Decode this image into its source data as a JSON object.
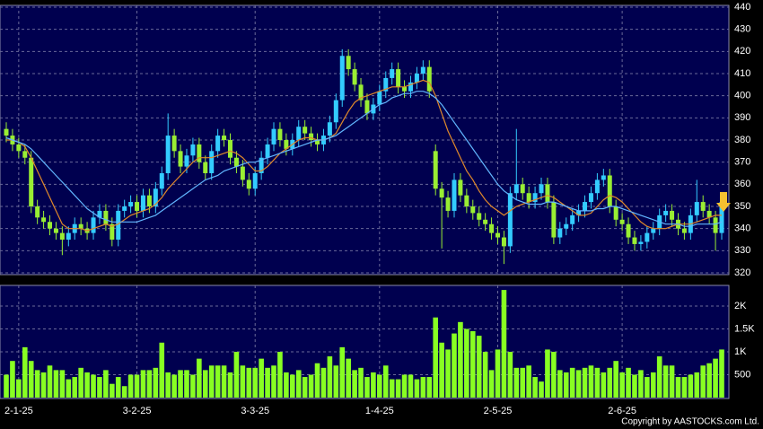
{
  "chart_data": {
    "type": "candlestick",
    "up_color": "#33ccff",
    "down_color": "#99ee33",
    "ylim": [
      320,
      440
    ],
    "yticks": [
      320,
      330,
      340,
      350,
      360,
      370,
      380,
      390,
      400,
      410,
      420,
      430,
      440
    ],
    "grid": true,
    "categories": [
      null,
      null,
      "2-1-25",
      null,
      null,
      null,
      null,
      null,
      null,
      null,
      null,
      null,
      null,
      null,
      null,
      null,
      null,
      null,
      null,
      null,
      null,
      "3-2-25",
      null,
      null,
      null,
      null,
      null,
      null,
      null,
      null,
      null,
      null,
      null,
      null,
      null,
      null,
      null,
      null,
      null,
      null,
      "3-3-25",
      null,
      null,
      null,
      null,
      null,
      null,
      null,
      null,
      null,
      null,
      null,
      null,
      null,
      null,
      null,
      null,
      null,
      null,
      null,
      "1-4-25",
      null,
      null,
      null,
      null,
      null,
      null,
      null,
      null,
      null,
      null,
      null,
      null,
      null,
      null,
      null,
      null,
      null,
      null,
      "2-5-25",
      null,
      null,
      null,
      null,
      null,
      null,
      null,
      null,
      null,
      null,
      null,
      null,
      null,
      null,
      null,
      null,
      null,
      null,
      null,
      "2-6-25",
      null,
      null,
      null,
      null,
      null,
      null,
      null,
      null,
      null,
      null,
      null,
      null,
      null,
      null,
      null,
      null
    ],
    "open": [
      385,
      382,
      378,
      375,
      372,
      350,
      345,
      343,
      340,
      338,
      335,
      338,
      342,
      340,
      338,
      345,
      348,
      342,
      335,
      348,
      350,
      352,
      348,
      355,
      350,
      358,
      365,
      382,
      375,
      368,
      373,
      378,
      370,
      365,
      375,
      382,
      380,
      372,
      368,
      362,
      358,
      365,
      372,
      378,
      385,
      380,
      376,
      380,
      386,
      383,
      380,
      378,
      382,
      388,
      398,
      418,
      412,
      405,
      398,
      392,
      396,
      402,
      408,
      412,
      404,
      402,
      406,
      410,
      413,
      375,
      358,
      354,
      348,
      362,
      355,
      350,
      347,
      344,
      342,
      338,
      336,
      332,
      356,
      360,
      356,
      352,
      356,
      360,
      352,
      336,
      340,
      342,
      346,
      348,
      352,
      356,
      362,
      364,
      350,
      344,
      342,
      336,
      333,
      334,
      338,
      340,
      346,
      348,
      344,
      340,
      338,
      346,
      352,
      348,
      345,
      338
    ],
    "high": [
      388,
      385,
      381,
      378,
      375,
      353,
      348,
      346,
      343,
      341,
      341,
      345,
      345,
      343,
      348,
      351,
      351,
      345,
      351,
      353,
      355,
      355,
      358,
      358,
      361,
      368,
      392,
      385,
      378,
      376,
      381,
      381,
      373,
      378,
      385,
      385,
      383,
      375,
      371,
      365,
      368,
      375,
      381,
      388,
      388,
      383,
      383,
      389,
      389,
      386,
      383,
      385,
      391,
      401,
      421,
      421,
      415,
      408,
      401,
      399,
      405,
      411,
      415,
      415,
      407,
      409,
      413,
      416,
      416,
      378,
      361,
      357,
      365,
      365,
      358,
      353,
      350,
      347,
      345,
      341,
      339,
      359,
      385,
      363,
      359,
      359,
      363,
      363,
      355,
      343,
      345,
      349,
      351,
      355,
      359,
      365,
      367,
      367,
      353,
      347,
      345,
      339,
      337,
      341,
      343,
      349,
      351,
      351,
      347,
      343,
      349,
      362,
      355,
      351,
      348,
      355
    ],
    "low": [
      379,
      375,
      372,
      369,
      347,
      342,
      340,
      337,
      335,
      328,
      332,
      335,
      337,
      335,
      335,
      342,
      339,
      332,
      332,
      345,
      347,
      345,
      345,
      347,
      347,
      355,
      362,
      372,
      365,
      365,
      370,
      367,
      362,
      362,
      372,
      377,
      369,
      365,
      359,
      355,
      355,
      362,
      369,
      375,
      377,
      373,
      373,
      377,
      380,
      377,
      375,
      375,
      379,
      385,
      395,
      409,
      402,
      395,
      389,
      389,
      393,
      399,
      405,
      401,
      399,
      399,
      403,
      407,
      399,
      355,
      331,
      345,
      345,
      352,
      347,
      344,
      341,
      339,
      335,
      333,
      324,
      329,
      353,
      353,
      349,
      349,
      353,
      349,
      333,
      333,
      337,
      339,
      343,
      345,
      349,
      353,
      359,
      347,
      341,
      339,
      333,
      330,
      330,
      331,
      335,
      337,
      343,
      341,
      337,
      335,
      335,
      343,
      345,
      342,
      330,
      335
    ],
    "close": [
      382,
      378,
      375,
      372,
      350,
      345,
      343,
      340,
      338,
      335,
      338,
      342,
      340,
      338,
      345,
      348,
      342,
      335,
      348,
      350,
      352,
      348,
      355,
      350,
      358,
      365,
      382,
      375,
      368,
      373,
      378,
      370,
      365,
      375,
      382,
      380,
      372,
      368,
      362,
      358,
      365,
      372,
      378,
      385,
      380,
      376,
      380,
      386,
      383,
      380,
      378,
      382,
      388,
      398,
      418,
      412,
      405,
      398,
      392,
      396,
      402,
      408,
      412,
      404,
      402,
      406,
      410,
      413,
      402,
      358,
      354,
      348,
      362,
      355,
      350,
      347,
      344,
      342,
      338,
      336,
      332,
      356,
      360,
      356,
      352,
      356,
      360,
      352,
      336,
      340,
      342,
      346,
      348,
      352,
      356,
      362,
      364,
      350,
      344,
      342,
      336,
      333,
      334,
      338,
      340,
      346,
      348,
      344,
      340,
      338,
      346,
      352,
      348,
      345,
      338,
      352
    ],
    "lines": [
      {
        "color": "#e0892a",
        "values": [
          380,
          380,
          379,
          377,
          372,
          366,
          360,
          354,
          348,
          342,
          340,
          340,
          340,
          339,
          340,
          341,
          342,
          341,
          342,
          344,
          346,
          347,
          348,
          349,
          351,
          354,
          358,
          361,
          364,
          367,
          370,
          372,
          372,
          372,
          373,
          374,
          375,
          374,
          372,
          369,
          366,
          366,
          368,
          371,
          374,
          376,
          378,
          380,
          381,
          381,
          380,
          380,
          381,
          383,
          388,
          393,
          397,
          399,
          400,
          401,
          402,
          403,
          404,
          404,
          404,
          405,
          406,
          407,
          406,
          400,
          392,
          384,
          378,
          372,
          366,
          362,
          357,
          353,
          350,
          348,
          346,
          348,
          350,
          351,
          352,
          353,
          354,
          355,
          354,
          352,
          350,
          348,
          346,
          346,
          347,
          350,
          353,
          355,
          354,
          352,
          349,
          346,
          343,
          341,
          340,
          340,
          340,
          341,
          342,
          342,
          342,
          343,
          344,
          345,
          346,
          346
        ]
      },
      {
        "color": "#62b6ff",
        "values": [
          381,
          380,
          379,
          378,
          376,
          373,
          370,
          367,
          364,
          361,
          358,
          355,
          352,
          349,
          347,
          345,
          344,
          343,
          343,
          343,
          343,
          343,
          344,
          345,
          346,
          348,
          350,
          352,
          354,
          356,
          358,
          360,
          362,
          363,
          364,
          366,
          367,
          368,
          369,
          370,
          370,
          371,
          372,
          373,
          374,
          375,
          376,
          377,
          378,
          379,
          380,
          380,
          381,
          382,
          384,
          386,
          388,
          390,
          392,
          394,
          396,
          397,
          399,
          400,
          401,
          401,
          402,
          402,
          401,
          399,
          396,
          392,
          388,
          384,
          380,
          376,
          372,
          368,
          364,
          360,
          357,
          355,
          353,
          352,
          351,
          351,
          351,
          352,
          352,
          351,
          350,
          349,
          348,
          348,
          348,
          349,
          349,
          350,
          350,
          349,
          348,
          347,
          346,
          345,
          344,
          343,
          342,
          342,
          342,
          341,
          341,
          342,
          342,
          342,
          342,
          343
        ]
      }
    ],
    "volume": {
      "color": "#88ff22",
      "ylim": [
        0,
        2450
      ],
      "yticks": [
        500,
        {
          "value": 1000,
          "label": "1K"
        },
        {
          "value": 1500,
          "label": "1.5K"
        },
        {
          "value": 2000,
          "label": "2K"
        }
      ],
      "values": [
        500,
        800,
        400,
        1100,
        800,
        600,
        550,
        700,
        600,
        600,
        400,
        450,
        650,
        550,
        500,
        450,
        600,
        300,
        450,
        250,
        500,
        500,
        600,
        600,
        650,
        1200,
        550,
        500,
        600,
        600,
        500,
        850,
        600,
        700,
        700,
        700,
        550,
        1000,
        700,
        650,
        650,
        850,
        650,
        700,
        1000,
        550,
        500,
        600,
        450,
        500,
        750,
        650,
        900,
        700,
        1100,
        850,
        600,
        650,
        450,
        550,
        500,
        700,
        400,
        400,
        500,
        500,
        400,
        450,
        450,
        1750,
        1200,
        1050,
        1400,
        1650,
        1500,
        1450,
        1350,
        1000,
        600,
        1050,
        2350,
        1000,
        650,
        650,
        700,
        450,
        350,
        1050,
        1000,
        600,
        550,
        650,
        600,
        650,
        700,
        650,
        550,
        650,
        800,
        550,
        650,
        500,
        600,
        450,
        550,
        900,
        700,
        700,
        450,
        450,
        500,
        550,
        700,
        750,
        850,
        1050
      ]
    },
    "copyright": "Copyright by AASTOCKS.com Ltd."
  }
}
